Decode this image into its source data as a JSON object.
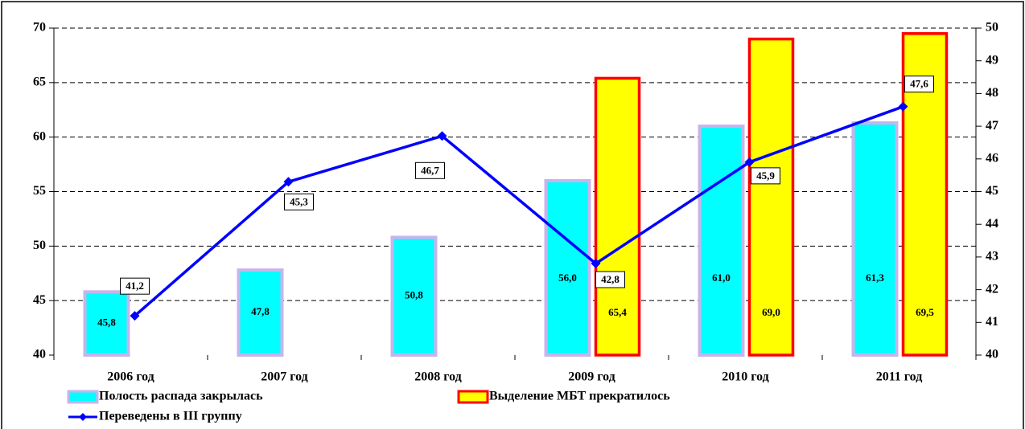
{
  "chart_data": {
    "type": "bar",
    "categories": [
      "2006 год",
      "2007 год",
      "2008 год",
      "2009 год",
      "2010 год",
      "2011 год"
    ],
    "series": [
      {
        "name": "Полость распада закрылась",
        "color": "#00ffff",
        "values": [
          45.8,
          47.8,
          50.8,
          56.0,
          61.0,
          61.3
        ],
        "value_labels": [
          "45,8",
          "47,8",
          "50,8",
          "56,0",
          "61,0",
          "61,3"
        ]
      },
      {
        "name": "Выделение МБТ прекратилось",
        "color": "#ffff00",
        "values": [
          null,
          null,
          null,
          65.4,
          69.0,
          69.5
        ],
        "value_labels": [
          null,
          null,
          null,
          "65,4",
          "69,0",
          "69,5"
        ]
      },
      {
        "name": "Переведены в III группу",
        "color": "#0000ff",
        "type": "line",
        "axis": "y2",
        "values": [
          41.2,
          45.3,
          46.7,
          42.8,
          45.9,
          47.6
        ],
        "value_labels": [
          "41,2",
          "45,3",
          "46,7",
          "42,8",
          "45,9",
          "47,6"
        ]
      }
    ],
    "ylim": [
      40,
      70
    ],
    "yticks": [
      40,
      45,
      50,
      55,
      60,
      65,
      70
    ],
    "y2lim": [
      40,
      50
    ],
    "y2ticks": [
      40,
      41,
      42,
      43,
      44,
      45,
      46,
      47,
      48,
      49,
      50
    ],
    "grid": true
  }
}
